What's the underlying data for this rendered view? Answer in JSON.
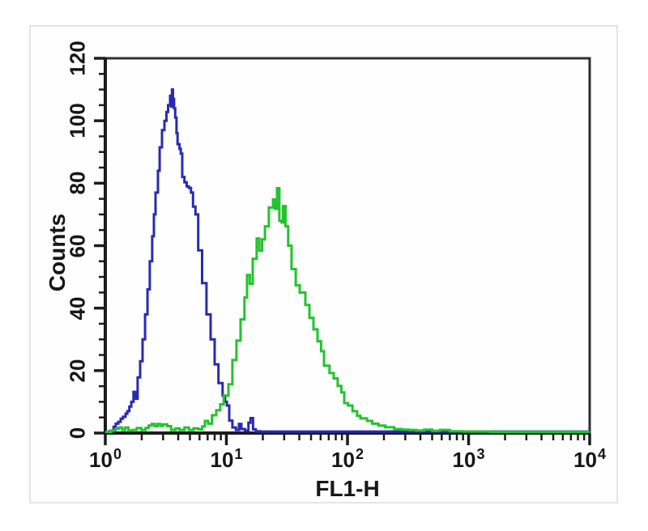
{
  "chart_data": {
    "type": "line",
    "subtype": "flow-cytometry-histogram-overlay",
    "title": "",
    "xlabel": "FL1-H",
    "ylabel": "Counts",
    "x_scale": "log10",
    "xlim": [
      1,
      10000
    ],
    "ylim": [
      0,
      120
    ],
    "grid": false,
    "legend_position": "none",
    "x_tick_base": "10",
    "x_decade_exponents": [
      0,
      1,
      2,
      3,
      4
    ],
    "x_minor_multiples": [
      2,
      3,
      4,
      5,
      6,
      7,
      8,
      9
    ],
    "y_major_ticks": [
      0,
      20,
      40,
      60,
      80,
      100,
      120
    ],
    "y_minor_step": 5,
    "series": [
      {
        "name": "control-histogram-blue",
        "color": "#2a2ab2",
        "peak_x": 3.55,
        "peak_counts": 110,
        "points": [
          [
            1.0,
            0.3
          ],
          [
            1.08,
            0.6
          ],
          [
            1.17,
            2
          ],
          [
            1.22,
            3
          ],
          [
            1.28,
            3.6
          ],
          [
            1.34,
            4.6
          ],
          [
            1.4,
            5.2
          ],
          [
            1.47,
            6.2
          ],
          [
            1.52,
            7
          ],
          [
            1.58,
            8.5
          ],
          [
            1.64,
            10
          ],
          [
            1.71,
            13.2
          ],
          [
            1.77,
            11
          ],
          [
            1.85,
            17.8
          ],
          [
            1.94,
            23
          ],
          [
            2.03,
            30
          ],
          [
            2.13,
            38
          ],
          [
            2.23,
            46
          ],
          [
            2.33,
            55
          ],
          [
            2.44,
            63
          ],
          [
            2.52,
            70
          ],
          [
            2.6,
            77
          ],
          [
            2.72,
            84
          ],
          [
            2.81,
            91.5
          ],
          [
            2.94,
            97
          ],
          [
            3.08,
            100
          ],
          [
            3.2,
            102.8
          ],
          [
            3.3,
            105
          ],
          [
            3.43,
            108
          ],
          [
            3.5,
            104.5
          ],
          [
            3.55,
            110
          ],
          [
            3.62,
            107
          ],
          [
            3.7,
            104
          ],
          [
            3.78,
            101
          ],
          [
            3.87,
            96
          ],
          [
            3.95,
            92.5
          ],
          [
            4.1,
            91
          ],
          [
            4.2,
            89.5
          ],
          [
            4.32,
            82
          ],
          [
            4.5,
            80.3
          ],
          [
            4.7,
            79
          ],
          [
            4.9,
            78.5
          ],
          [
            5.1,
            77
          ],
          [
            5.3,
            72.5
          ],
          [
            5.55,
            70
          ],
          [
            5.85,
            58.5
          ],
          [
            6.3,
            48
          ],
          [
            6.85,
            38
          ],
          [
            7.4,
            30
          ],
          [
            8.0,
            22
          ],
          [
            8.6,
            16
          ],
          [
            9.3,
            12
          ],
          [
            9.75,
            10
          ],
          [
            10.1,
            8.8
          ],
          [
            10.55,
            4
          ],
          [
            11.2,
            1.8
          ],
          [
            12.0,
            1.0
          ],
          [
            12.7,
            2.9
          ],
          [
            13.3,
            1.3
          ],
          [
            14.2,
            0.8
          ],
          [
            15.2,
            3.3
          ],
          [
            15.8,
            4.8
          ],
          [
            16.6,
            1.2
          ],
          [
            17.5,
            0.6
          ],
          [
            19,
            0.5
          ],
          [
            25,
            0.5
          ],
          [
            40,
            0.5
          ],
          [
            70,
            0.5
          ],
          [
            120,
            0.5
          ],
          [
            250,
            0.5
          ],
          [
            500,
            0.5
          ],
          [
            1000,
            0.5
          ],
          [
            2500,
            0.5
          ],
          [
            5000,
            0.5
          ],
          [
            10000,
            0.4
          ]
        ]
      },
      {
        "name": "antibody-histogram-green",
        "color": "#23c32e",
        "peak_x": 26.2,
        "peak_counts": 78,
        "points": [
          [
            1.0,
            0.4
          ],
          [
            1.12,
            0.8
          ],
          [
            1.22,
            1.4
          ],
          [
            1.3,
            1.8
          ],
          [
            1.38,
            1.0
          ],
          [
            1.46,
            1.8
          ],
          [
            1.55,
            0.8
          ],
          [
            1.68,
            1.0
          ],
          [
            1.82,
            1.6
          ],
          [
            1.98,
            1.0
          ],
          [
            2.15,
            1.6
          ],
          [
            2.28,
            2.4
          ],
          [
            2.42,
            2.9
          ],
          [
            2.56,
            2.2
          ],
          [
            2.7,
            2.9
          ],
          [
            2.85,
            2.3
          ],
          [
            3.0,
            2.8
          ],
          [
            3.25,
            2.2
          ],
          [
            3.5,
            1.0
          ],
          [
            3.8,
            1.5
          ],
          [
            4.1,
            1.0
          ],
          [
            4.5,
            1.8
          ],
          [
            4.9,
            1.0
          ],
          [
            5.35,
            1.5
          ],
          [
            5.85,
            1.2
          ],
          [
            6.3,
            2.1
          ],
          [
            6.65,
            3.9
          ],
          [
            7.05,
            3.0
          ],
          [
            7.6,
            5.7
          ],
          [
            8.25,
            7.3
          ],
          [
            8.9,
            9.2
          ],
          [
            9.5,
            12
          ],
          [
            10.4,
            15.6
          ],
          [
            11.2,
            23.4
          ],
          [
            12.1,
            29.6
          ],
          [
            13.1,
            36.4
          ],
          [
            14.1,
            43.4
          ],
          [
            14.8,
            50.6
          ],
          [
            15.6,
            47.8
          ],
          [
            16.5,
            55.8
          ],
          [
            17.8,
            62.3
          ],
          [
            18.7,
            58.4
          ],
          [
            19.7,
            62
          ],
          [
            20.8,
            66.2
          ],
          [
            22.4,
            72.2
          ],
          [
            24.3,
            74.8
          ],
          [
            25.2,
            71.8
          ],
          [
            26.2,
            78.4
          ],
          [
            27.4,
            68
          ],
          [
            28.6,
            67.4
          ],
          [
            29.4,
            72.7
          ],
          [
            30.8,
            66.2
          ],
          [
            32.4,
            60
          ],
          [
            34.5,
            52.5
          ],
          [
            37.4,
            47.3
          ],
          [
            40.3,
            45
          ],
          [
            44.9,
            41
          ],
          [
            48.5,
            36.9
          ],
          [
            52.4,
            33.2
          ],
          [
            56.6,
            29.4
          ],
          [
            60.5,
            26.2
          ],
          [
            64,
            21.6
          ],
          [
            71,
            19.2
          ],
          [
            77,
            17.5
          ],
          [
            83,
            15.1
          ],
          [
            89,
            13
          ],
          [
            94,
            9.6
          ],
          [
            101,
            8.8
          ],
          [
            110,
            7.0
          ],
          [
            120,
            5.5
          ],
          [
            128,
            4.7
          ],
          [
            145,
            3.9
          ],
          [
            160,
            3.0
          ],
          [
            180,
            2.4
          ],
          [
            205,
            1.9
          ],
          [
            243,
            1.3
          ],
          [
            280,
            1.1
          ],
          [
            320,
            1.0
          ],
          [
            370,
            0.8
          ],
          [
            430,
            1.1
          ],
          [
            500,
            0.7
          ],
          [
            580,
            1.0
          ],
          [
            700,
            0.6
          ],
          [
            900,
            0.5
          ],
          [
            1500,
            0.4
          ],
          [
            3000,
            0.4
          ],
          [
            6000,
            0.4
          ],
          [
            10000,
            0.4
          ]
        ]
      }
    ]
  },
  "colors": {
    "axis": "#1c1c1c",
    "box_border": "#2e2e2e",
    "panel_border": "#e4e4e4",
    "tick_label": "#161616"
  }
}
